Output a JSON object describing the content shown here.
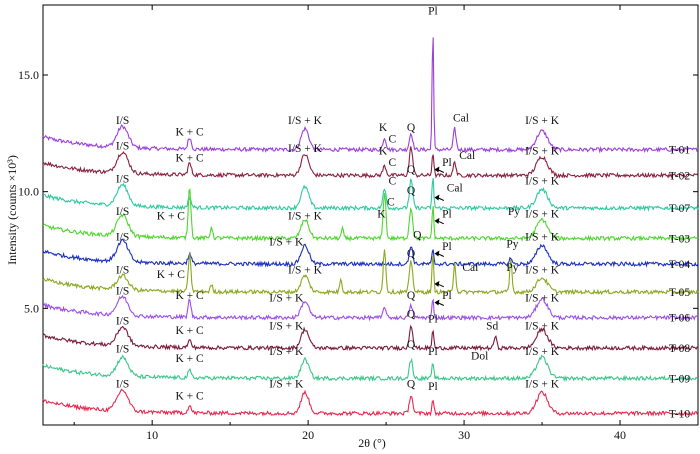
{
  "chart_data": {
    "type": "line",
    "xlabel": "2θ (°)",
    "ylabel": "Intensity (counts ×10³)",
    "xlim": [
      3,
      45
    ],
    "ylim": [
      0,
      18
    ],
    "x_ticks": [
      10,
      20,
      30,
      40
    ],
    "y_ticks": [
      5.0,
      10.0,
      15.0
    ],
    "y_tick_labels": [
      "5.0",
      "10.0",
      "15.0"
    ],
    "grid": false,
    "series": [
      {
        "name": "T-01",
        "color": "#9b3fd9",
        "baseline": 11.8,
        "peaks": [
          {
            "x": 8.1,
            "h": 0.9,
            "w": 0.5
          },
          {
            "x": 12.4,
            "h": 0.5,
            "w": 0.15
          },
          {
            "x": 19.8,
            "h": 0.9,
            "w": 0.35
          },
          {
            "x": 24.9,
            "h": 0.5,
            "w": 0.15
          },
          {
            "x": 26.6,
            "h": 0.7,
            "w": 0.15
          },
          {
            "x": 28.0,
            "h": 5.3,
            "w": 0.07
          },
          {
            "x": 29.4,
            "h": 0.9,
            "w": 0.12
          },
          {
            "x": 35.0,
            "h": 0.8,
            "w": 0.5
          }
        ],
        "annotations": [
          {
            "text": "I/S",
            "x": 8.1,
            "y": 12.9
          },
          {
            "text": "K + C",
            "x": 12.4,
            "y": 12.4
          },
          {
            "text": "I/S + K",
            "x": 19.8,
            "y": 12.9
          },
          {
            "text": "K",
            "x": 24.8,
            "y": 12.6
          },
          {
            "text": "C",
            "x": 25.4,
            "y": 12.1
          },
          {
            "text": "Q",
            "x": 26.6,
            "y": 12.6
          },
          {
            "text": "Pl",
            "x": 28.0,
            "y": 17.6
          },
          {
            "text": "Cal",
            "x": 29.8,
            "y": 13.0
          },
          {
            "text": "I/S + K",
            "x": 35.0,
            "y": 12.9
          }
        ]
      },
      {
        "name": "T-02",
        "color": "#8b1f3f",
        "baseline": 10.7,
        "peaks": [
          {
            "x": 8.1,
            "h": 0.9,
            "w": 0.5
          },
          {
            "x": 12.4,
            "h": 0.5,
            "w": 0.15
          },
          {
            "x": 19.8,
            "h": 0.9,
            "w": 0.35
          },
          {
            "x": 24.9,
            "h": 0.4,
            "w": 0.15
          },
          {
            "x": 26.6,
            "h": 1.2,
            "w": 0.15
          },
          {
            "x": 28.0,
            "h": 1.0,
            "w": 0.08
          },
          {
            "x": 29.4,
            "h": 0.6,
            "w": 0.12
          },
          {
            "x": 35.0,
            "h": 0.8,
            "w": 0.5
          }
        ],
        "annotations": [
          {
            "text": "I/S",
            "x": 8.1,
            "y": 11.8
          },
          {
            "text": "K + C",
            "x": 12.4,
            "y": 11.3
          },
          {
            "text": "I/S + K",
            "x": 19.8,
            "y": 11.7
          },
          {
            "text": "K",
            "x": 24.8,
            "y": 11.6
          },
          {
            "text": "C",
            "x": 25.4,
            "y": 11.1
          },
          {
            "text": "Pl",
            "x": 28.9,
            "y": 11.1
          },
          {
            "text": "Cal",
            "x": 30.2,
            "y": 11.4
          },
          {
            "text": "I/S + K",
            "x": 35.0,
            "y": 11.6
          }
        ]
      },
      {
        "name": "T-07",
        "color": "#2ec9a0",
        "baseline": 9.3,
        "peaks": [
          {
            "x": 8.1,
            "h": 0.9,
            "w": 0.5
          },
          {
            "x": 12.4,
            "h": 0.4,
            "w": 0.15
          },
          {
            "x": 19.8,
            "h": 0.9,
            "w": 0.35
          },
          {
            "x": 24.9,
            "h": 0.8,
            "w": 0.15
          },
          {
            "x": 26.6,
            "h": 1.2,
            "w": 0.15
          },
          {
            "x": 28.0,
            "h": 1.3,
            "w": 0.08
          },
          {
            "x": 35.0,
            "h": 0.8,
            "w": 0.5
          }
        ],
        "annotations": [
          {
            "text": "I/S",
            "x": 8.1,
            "y": 10.4
          },
          {
            "text": "Q",
            "x": 26.6,
            "y": 10.8
          },
          {
            "text": "C",
            "x": 25.4,
            "y": 10.3
          },
          {
            "text": "Cal",
            "x": 29.4,
            "y": 10.0
          },
          {
            "text": "I/S + K",
            "x": 35.0,
            "y": 10.3
          }
        ]
      },
      {
        "name": "T-03",
        "color": "#4ed62e",
        "baseline": 8.0,
        "peaks": [
          {
            "x": 8.1,
            "h": 0.9,
            "w": 0.5
          },
          {
            "x": 12.4,
            "h": 2.2,
            "w": 0.12
          },
          {
            "x": 13.8,
            "h": 0.5,
            "w": 0.1
          },
          {
            "x": 19.8,
            "h": 0.8,
            "w": 0.35
          },
          {
            "x": 22.2,
            "h": 0.4,
            "w": 0.1
          },
          {
            "x": 24.9,
            "h": 2.0,
            "w": 0.12
          },
          {
            "x": 26.6,
            "h": 1.3,
            "w": 0.15
          },
          {
            "x": 28.0,
            "h": 1.4,
            "w": 0.08
          },
          {
            "x": 35.0,
            "h": 0.8,
            "w": 0.5
          }
        ],
        "annotations": [
          {
            "text": "I/S",
            "x": 8.1,
            "y": 9.0
          },
          {
            "text": "K + C",
            "x": 11.2,
            "y": 8.8
          },
          {
            "text": "I/S + K",
            "x": 19.8,
            "y": 8.8
          },
          {
            "text": "K",
            "x": 24.7,
            "y": 8.9
          },
          {
            "text": "C",
            "x": 25.3,
            "y": 9.4
          },
          {
            "text": "Q",
            "x": 26.6,
            "y": 9.9
          },
          {
            "text": "Pl",
            "x": 28.9,
            "y": 8.9
          },
          {
            "text": "Py",
            "x": 33.2,
            "y": 9.0
          },
          {
            "text": "I/S + K",
            "x": 35.0,
            "y": 8.9
          }
        ]
      },
      {
        "name": "T-04",
        "color": "#1a2fbf",
        "baseline": 6.9,
        "peaks": [
          {
            "x": 8.1,
            "h": 0.9,
            "w": 0.5
          },
          {
            "x": 12.4,
            "h": 0.4,
            "w": 0.15
          },
          {
            "x": 19.8,
            "h": 0.8,
            "w": 0.35
          },
          {
            "x": 26.6,
            "h": 0.8,
            "w": 0.15
          },
          {
            "x": 28.0,
            "h": 0.6,
            "w": 0.08
          },
          {
            "x": 33.0,
            "h": 0.3,
            "w": 0.1
          },
          {
            "x": 35.0,
            "h": 0.8,
            "w": 0.5
          }
        ],
        "annotations": [
          {
            "text": "I/S",
            "x": 8.1,
            "y": 7.9
          },
          {
            "text": "I/S + K",
            "x": 18.6,
            "y": 7.7
          },
          {
            "text": "Q",
            "x": 27.0,
            "y": 8.0
          },
          {
            "text": "Pl",
            "x": 28.9,
            "y": 7.5
          },
          {
            "text": "Py",
            "x": 33.1,
            "y": 7.6
          },
          {
            "text": "I/S + K",
            "x": 35.0,
            "y": 7.9
          }
        ]
      },
      {
        "name": "T-05",
        "color": "#8aa820",
        "baseline": 5.7,
        "peaks": [
          {
            "x": 8.1,
            "h": 0.6,
            "w": 0.5
          },
          {
            "x": 12.4,
            "h": 1.6,
            "w": 0.12
          },
          {
            "x": 13.8,
            "h": 0.3,
            "w": 0.1
          },
          {
            "x": 19.8,
            "h": 0.7,
            "w": 0.35
          },
          {
            "x": 22.1,
            "h": 0.6,
            "w": 0.1
          },
          {
            "x": 24.9,
            "h": 1.8,
            "w": 0.12
          },
          {
            "x": 26.6,
            "h": 1.3,
            "w": 0.15
          },
          {
            "x": 28.0,
            "h": 1.6,
            "w": 0.08
          },
          {
            "x": 29.4,
            "h": 1.3,
            "w": 0.1
          },
          {
            "x": 33.0,
            "h": 1.4,
            "w": 0.1
          },
          {
            "x": 35.0,
            "h": 0.6,
            "w": 0.5
          }
        ],
        "annotations": [
          {
            "text": "I/S",
            "x": 8.1,
            "y": 6.5
          },
          {
            "text": "K + C",
            "x": 11.2,
            "y": 6.3
          },
          {
            "text": "I/S + K",
            "x": 19.8,
            "y": 6.5
          },
          {
            "text": "Q",
            "x": 26.6,
            "y": 7.2
          },
          {
            "text": "Cal",
            "x": 30.4,
            "y": 6.6
          },
          {
            "text": "Py",
            "x": 33.1,
            "y": 6.6
          },
          {
            "text": "I/S + K",
            "x": 35.0,
            "y": 6.5
          }
        ]
      },
      {
        "name": "T-06",
        "color": "#9b4fe8",
        "baseline": 4.6,
        "peaks": [
          {
            "x": 8.1,
            "h": 0.8,
            "w": 0.5
          },
          {
            "x": 12.4,
            "h": 0.8,
            "w": 0.12
          },
          {
            "x": 19.8,
            "h": 0.7,
            "w": 0.35
          },
          {
            "x": 24.9,
            "h": 0.5,
            "w": 0.12
          },
          {
            "x": 26.6,
            "h": 0.5,
            "w": 0.15
          },
          {
            "x": 28.0,
            "h": 0.8,
            "w": 0.08
          },
          {
            "x": 35.0,
            "h": 0.8,
            "w": 0.5
          }
        ],
        "annotations": [
          {
            "text": "I/S",
            "x": 8.1,
            "y": 5.6
          },
          {
            "text": "K + C",
            "x": 12.4,
            "y": 5.4
          },
          {
            "text": "I/S + K",
            "x": 18.6,
            "y": 5.3
          },
          {
            "text": "Q",
            "x": 26.6,
            "y": 5.4
          },
          {
            "text": "Pl",
            "x": 28.9,
            "y": 5.4
          },
          {
            "text": "I/S + K",
            "x": 35.0,
            "y": 5.3
          }
        ]
      },
      {
        "name": "T-08",
        "color": "#7a1a3a",
        "baseline": 3.3,
        "peaks": [
          {
            "x": 8.1,
            "h": 0.8,
            "w": 0.5
          },
          {
            "x": 12.4,
            "h": 0.3,
            "w": 0.15
          },
          {
            "x": 19.8,
            "h": 0.8,
            "w": 0.35
          },
          {
            "x": 26.6,
            "h": 1.0,
            "w": 0.15
          },
          {
            "x": 28.0,
            "h": 0.8,
            "w": 0.08
          },
          {
            "x": 32.0,
            "h": 0.5,
            "w": 0.12
          },
          {
            "x": 35.0,
            "h": 0.8,
            "w": 0.5
          }
        ],
        "annotations": [
          {
            "text": "I/S",
            "x": 8.1,
            "y": 4.3
          },
          {
            "text": "K + C",
            "x": 12.4,
            "y": 3.9
          },
          {
            "text": "I/S + K",
            "x": 18.6,
            "y": 4.1
          },
          {
            "text": "Q",
            "x": 26.6,
            "y": 4.6
          },
          {
            "text": "Pl",
            "x": 28.0,
            "y": 4.4
          },
          {
            "text": "Sd",
            "x": 31.8,
            "y": 4.1
          },
          {
            "text": "I/S + K",
            "x": 35.0,
            "y": 4.1
          }
        ]
      },
      {
        "name": "T-09",
        "color": "#3ac68a",
        "baseline": 2.0,
        "peaks": [
          {
            "x": 8.1,
            "h": 0.8,
            "w": 0.5
          },
          {
            "x": 12.4,
            "h": 0.3,
            "w": 0.15
          },
          {
            "x": 19.8,
            "h": 0.8,
            "w": 0.35
          },
          {
            "x": 26.6,
            "h": 0.8,
            "w": 0.15
          },
          {
            "x": 28.0,
            "h": 0.7,
            "w": 0.08
          },
          {
            "x": 35.0,
            "h": 0.9,
            "w": 0.5
          }
        ],
        "annotations": [
          {
            "text": "I/S",
            "x": 8.1,
            "y": 3.1
          },
          {
            "text": "K + C",
            "x": 12.4,
            "y": 2.7
          },
          {
            "text": "I/S + K",
            "x": 18.6,
            "y": 3.0
          },
          {
            "text": "Q",
            "x": 26.6,
            "y": 3.3
          },
          {
            "text": "Pl",
            "x": 28.0,
            "y": 3.0
          },
          {
            "text": "Dol",
            "x": 31.0,
            "y": 2.8
          },
          {
            "text": "I/S + K",
            "x": 35.0,
            "y": 3.0
          }
        ]
      },
      {
        "name": "T-10",
        "color": "#e8284f",
        "baseline": 0.5,
        "peaks": [
          {
            "x": 8.1,
            "h": 0.9,
            "w": 0.5
          },
          {
            "x": 12.4,
            "h": 0.3,
            "w": 0.15
          },
          {
            "x": 19.8,
            "h": 0.9,
            "w": 0.35
          },
          {
            "x": 26.6,
            "h": 0.8,
            "w": 0.15
          },
          {
            "x": 28.0,
            "h": 0.6,
            "w": 0.08
          },
          {
            "x": 35.0,
            "h": 0.9,
            "w": 0.5
          }
        ],
        "annotations": [
          {
            "text": "I/S",
            "x": 8.1,
            "y": 1.6
          },
          {
            "text": "K + C",
            "x": 12.4,
            "y": 1.1
          },
          {
            "text": "I/S + K",
            "x": 18.6,
            "y": 1.6
          },
          {
            "text": "Q",
            "x": 26.6,
            "y": 1.6
          },
          {
            "text": "Pl",
            "x": 28.0,
            "y": 1.5
          },
          {
            "text": "I/S + K",
            "x": 35.0,
            "y": 1.6
          }
        ]
      }
    ],
    "arrows": [
      {
        "series": "T-02",
        "from_x": 28.7,
        "to_x": 28.1,
        "y": 10.95
      },
      {
        "series": "T-07",
        "from_x": 28.7,
        "to_x": 28.1,
        "y": 9.75
      },
      {
        "series": "T-03",
        "from_x": 28.7,
        "to_x": 28.1,
        "y": 8.75
      },
      {
        "series": "T-04",
        "from_x": 28.7,
        "to_x": 28.1,
        "y": 7.35
      },
      {
        "series": "T-05",
        "from_x": 28.7,
        "to_x": 28.1,
        "y": 6.05
      },
      {
        "series": "T-06",
        "from_x": 28.7,
        "to_x": 28.1,
        "y": 5.25
      }
    ]
  }
}
